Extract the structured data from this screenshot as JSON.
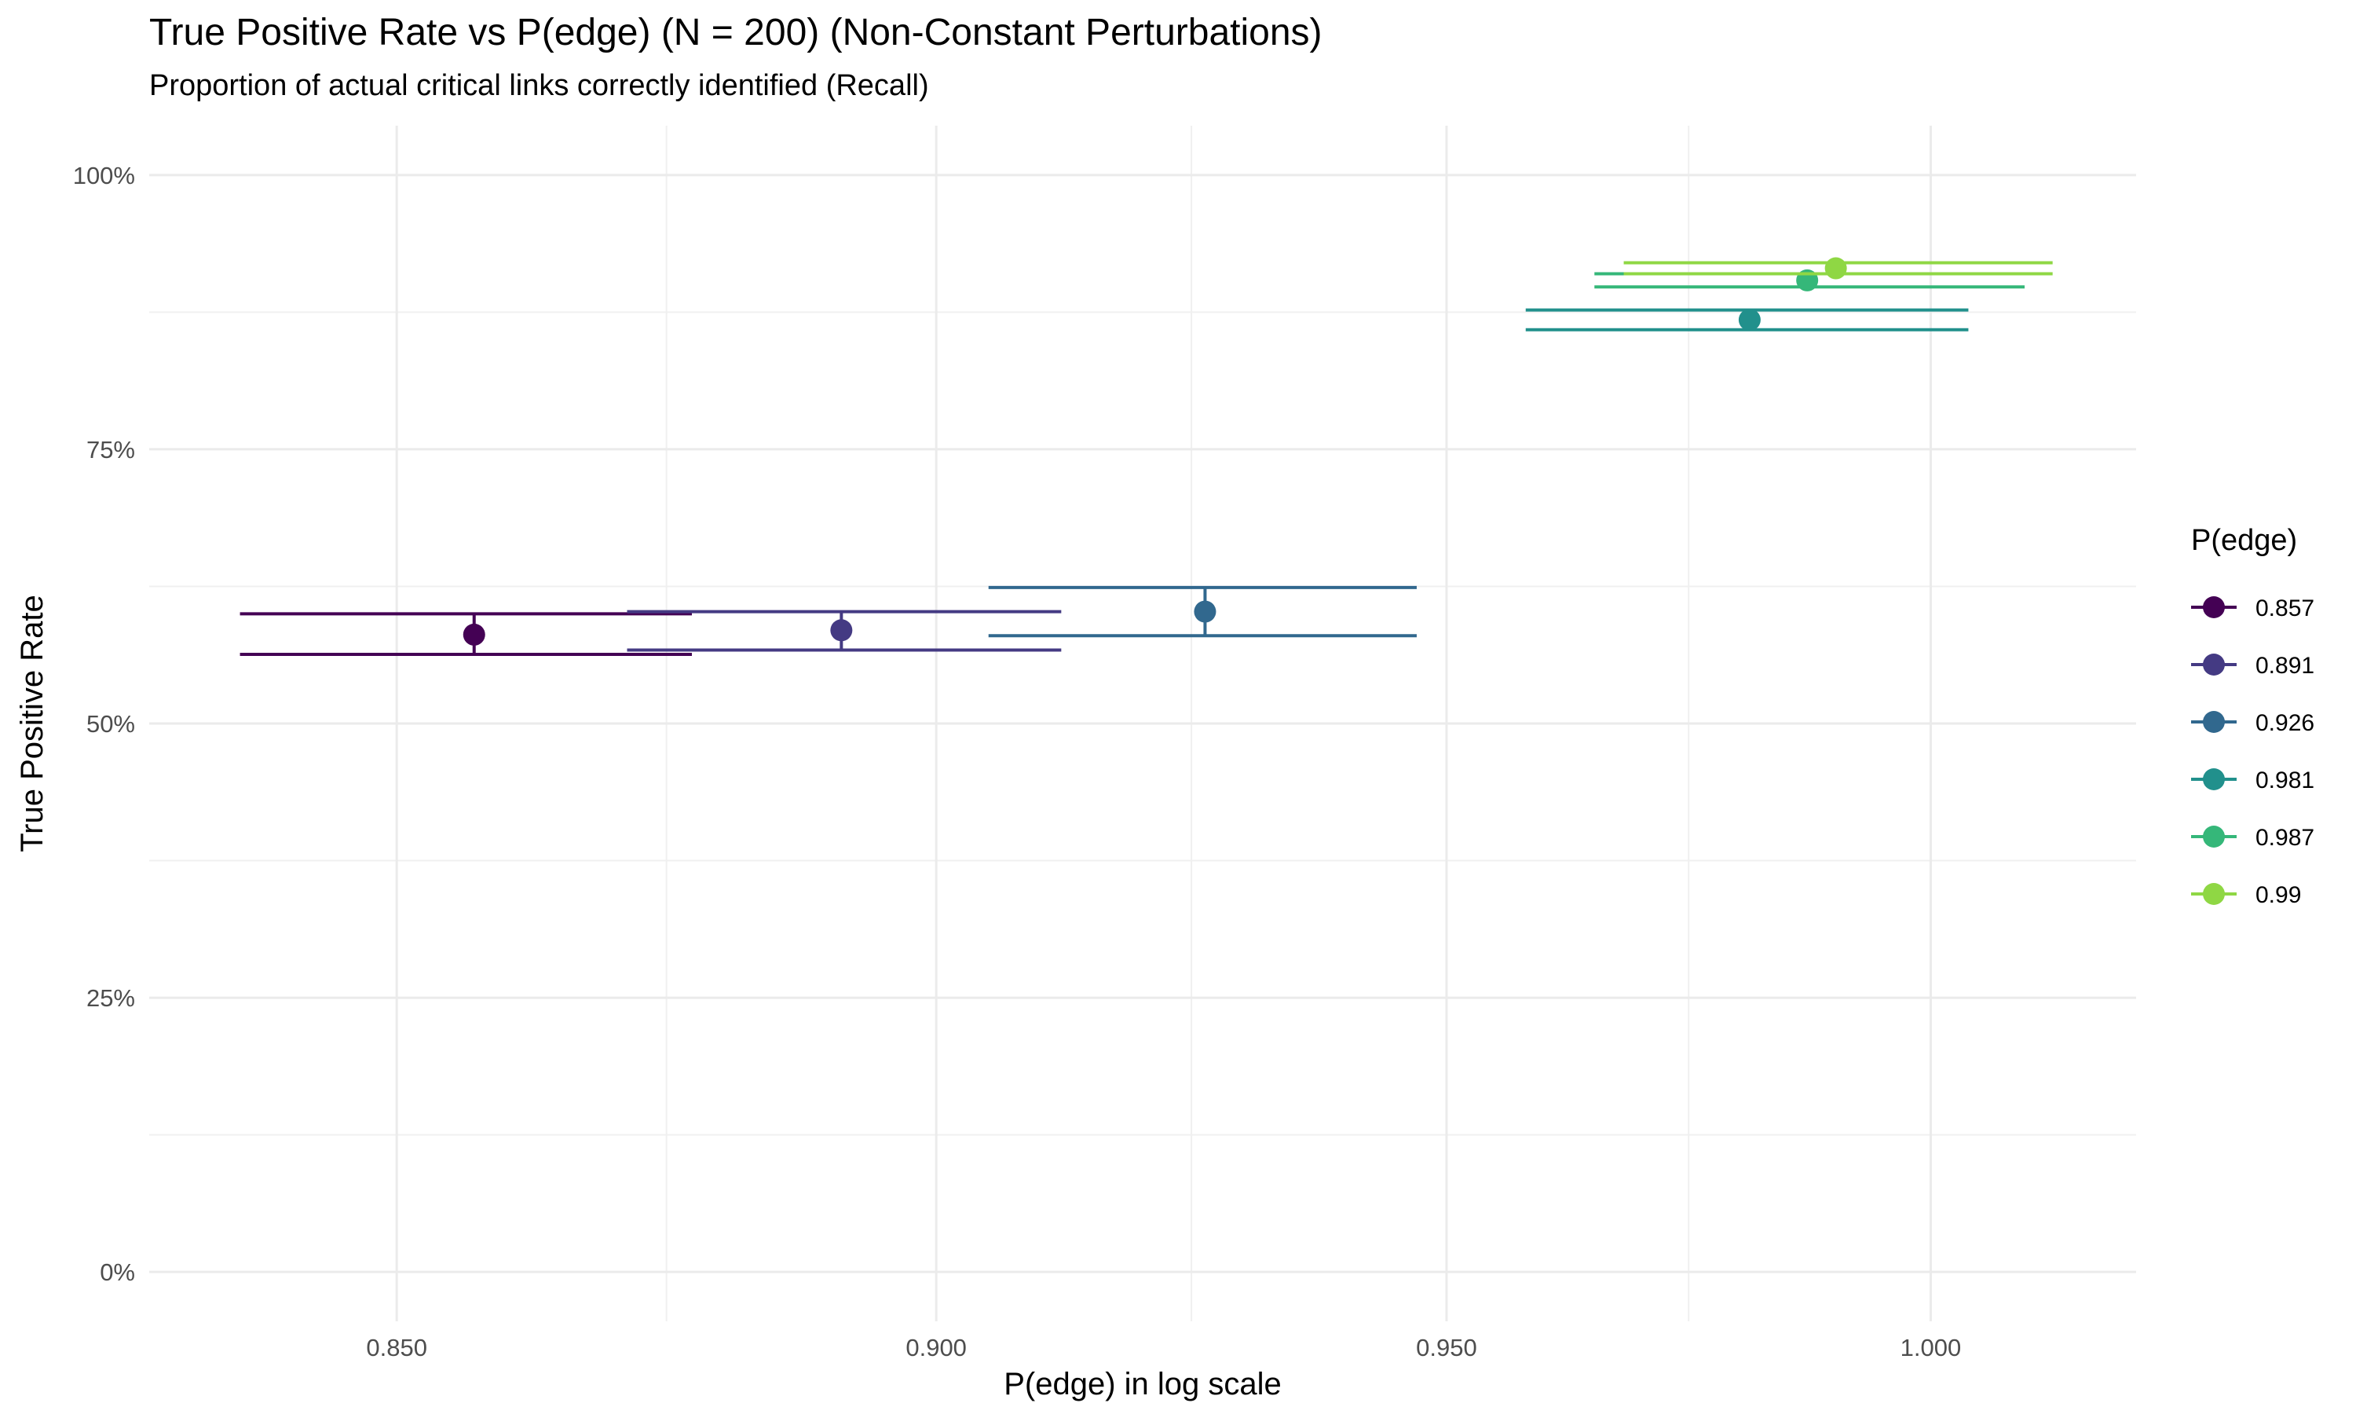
{
  "chart_data": {
    "type": "scatter",
    "title": "True Positive Rate vs P(edge) (N = 200) (Non-Constant Perturbations)",
    "subtitle": "Proportion of actual critical links correctly identified (Recall)",
    "xlabel": "P(edge) in log scale",
    "ylabel": "True Positive Rate",
    "x_scale": "log",
    "xlim": [
      0.828,
      1.022
    ],
    "ylim": [
      -0.045,
      1.045
    ],
    "x_ticks": [
      0.85,
      0.9,
      0.95,
      1.0
    ],
    "x_tick_labels": [
      "0.850",
      "0.900",
      "0.950",
      "1.000"
    ],
    "y_ticks": [
      0,
      0.25,
      0.5,
      0.75,
      1.0
    ],
    "y_tick_labels": [
      "0%",
      "25%",
      "50%",
      "75%",
      "100%"
    ],
    "grid": true,
    "legend_title": "P(edge)",
    "legend_position": "right",
    "series": [
      {
        "name": "0.857",
        "color": "#440154",
        "x": 0.857,
        "y": 0.581,
        "y_low": 0.563,
        "y_high": 0.6,
        "x_low": 0.836,
        "x_high": 0.877
      },
      {
        "name": "0.891",
        "color": "#443A83",
        "x": 0.891,
        "y": 0.585,
        "y_low": 0.567,
        "y_high": 0.602,
        "x_low": 0.871,
        "x_high": 0.912
      },
      {
        "name": "0.926",
        "color": "#31688E",
        "x": 0.926,
        "y": 0.602,
        "y_low": 0.58,
        "y_high": 0.624,
        "x_low": 0.905,
        "x_high": 0.947
      },
      {
        "name": "0.981",
        "color": "#21908C",
        "x": 0.981,
        "y": 0.868,
        "y_low": 0.859,
        "y_high": 0.877,
        "x_low": 0.958,
        "x_high": 1.004
      },
      {
        "name": "0.987",
        "color": "#35B779",
        "x": 0.987,
        "y": 0.904,
        "y_low": 0.898,
        "y_high": 0.91,
        "x_low": 0.965,
        "x_high": 1.01
      },
      {
        "name": "0.99",
        "color": "#8FD744",
        "x": 0.99,
        "y": 0.915,
        "y_low": 0.91,
        "y_high": 0.92,
        "x_low": 0.968,
        "x_high": 1.013
      }
    ]
  }
}
